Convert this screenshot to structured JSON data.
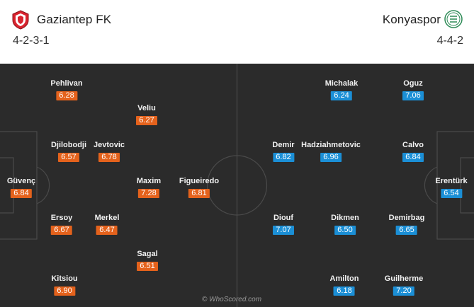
{
  "home": {
    "name": "Gaziantep FK",
    "formation": "4-2-3-1",
    "crest_color": "#d9232e",
    "players": [
      {
        "name": "Pehlivan",
        "rating": "6.28"
      },
      {
        "name": "Veliu",
        "rating": "6.27"
      },
      {
        "name": "Djilobodji",
        "rating": "6.57"
      },
      {
        "name": "Jevtovic",
        "rating": "6.78"
      },
      {
        "name": "Güvenç",
        "rating": "6.84"
      },
      {
        "name": "Maxim",
        "rating": "7.28"
      },
      {
        "name": "Figueiredo",
        "rating": "6.81"
      },
      {
        "name": "Ersoy",
        "rating": "6.67"
      },
      {
        "name": "Merkel",
        "rating": "6.47"
      },
      {
        "name": "Sagal",
        "rating": "6.51"
      },
      {
        "name": "Kitsiou",
        "rating": "6.90"
      }
    ]
  },
  "away": {
    "name": "Konyaspor",
    "formation": "4-4-2",
    "crest_color": "#2e8b57",
    "players": [
      {
        "name": "Michalak",
        "rating": "6.24"
      },
      {
        "name": "Oguz",
        "rating": "7.06"
      },
      {
        "name": "Demir",
        "rating": "6.82"
      },
      {
        "name": "Hadziahmetovic",
        "rating": "6.96"
      },
      {
        "name": "Calvo",
        "rating": "6.84"
      },
      {
        "name": "Erentürk",
        "rating": "6.54"
      },
      {
        "name": "Diouf",
        "rating": "7.07"
      },
      {
        "name": "Dikmen",
        "rating": "6.50"
      },
      {
        "name": "Demirbag",
        "rating": "6.65"
      },
      {
        "name": "Amilton",
        "rating": "6.18"
      },
      {
        "name": "Guilherme",
        "rating": "7.20"
      }
    ]
  },
  "colors": {
    "pitch": "#2b2b2b",
    "lines": "#4a4a4a",
    "home_rating": "#e4621c",
    "away_rating": "#1b8fd6"
  },
  "watermark": "© WhoScored.com"
}
